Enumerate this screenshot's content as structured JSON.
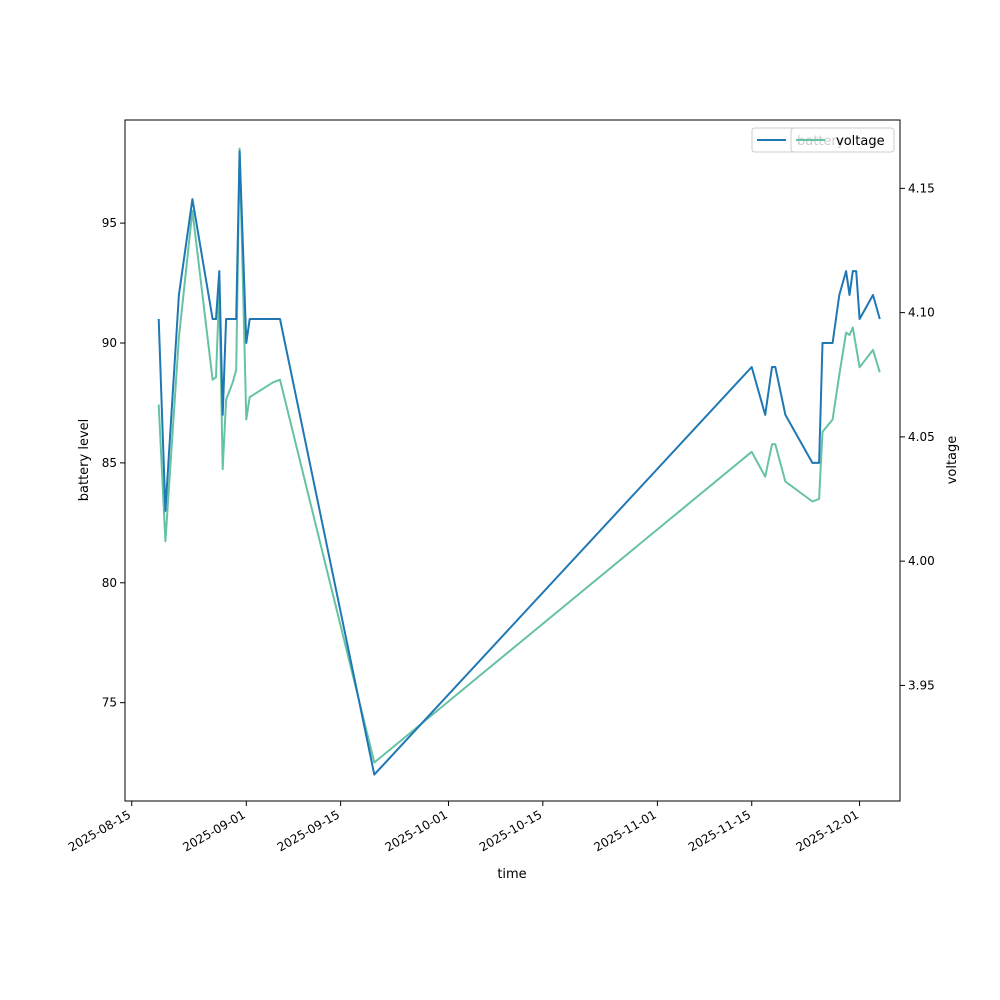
{
  "chart_data": {
    "type": "line",
    "xlabel": "time",
    "ylabel": "battery level",
    "ylabel_right": "voltage",
    "xlim": [
      "2025-08-14",
      "2025-12-07"
    ],
    "ylim": [
      70.9,
      99.3
    ],
    "ylim_right": [
      3.9035,
      4.1775
    ],
    "x_ticks": [
      "2025-08-15",
      "2025-09-01",
      "2025-09-15",
      "2025-10-01",
      "2025-10-15",
      "2025-11-01",
      "2025-11-15",
      "2025-12-01"
    ],
    "y_ticks": [
      75,
      80,
      85,
      90,
      95
    ],
    "y_ticks_right": [
      "3.95",
      "4.00",
      "4.05",
      "4.10",
      "4.15"
    ],
    "legend": {
      "placement": "top-right",
      "entries": [
        "battery",
        "voltage"
      ]
    },
    "grid": false,
    "series": [
      {
        "name": "battery",
        "axis": "left",
        "color": "#1f77b4",
        "points": [
          [
            "2025-08-19",
            91
          ],
          [
            "2025-08-20",
            83
          ],
          [
            "2025-08-22",
            92
          ],
          [
            "2025-08-24",
            96
          ],
          [
            "2025-08-27",
            91
          ],
          [
            "2025-08-27T12",
            91
          ],
          [
            "2025-08-28",
            93
          ],
          [
            "2025-08-28T12",
            87
          ],
          [
            "2025-08-29",
            91
          ],
          [
            "2025-08-30",
            91
          ],
          [
            "2025-08-30T12",
            91
          ],
          [
            "2025-08-31",
            98
          ],
          [
            "2025-09-01",
            90
          ],
          [
            "2025-09-01T12",
            91
          ],
          [
            "2025-09-03",
            91
          ],
          [
            "2025-09-05",
            91
          ],
          [
            "2025-09-06",
            91
          ],
          [
            "2025-09-20",
            72
          ],
          [
            "2025-11-15",
            89
          ],
          [
            "2025-11-17",
            87
          ],
          [
            "2025-11-18",
            89
          ],
          [
            "2025-11-18T12",
            89
          ],
          [
            "2025-11-20",
            87
          ],
          [
            "2025-11-24",
            85
          ],
          [
            "2025-11-25",
            85
          ],
          [
            "2025-11-25T12",
            90
          ],
          [
            "2025-11-27",
            90
          ],
          [
            "2025-11-28",
            92
          ],
          [
            "2025-11-29",
            93
          ],
          [
            "2025-11-29T12",
            92
          ],
          [
            "2025-11-30",
            93
          ],
          [
            "2025-11-30T12",
            93
          ],
          [
            "2025-12-01",
            91
          ],
          [
            "2025-12-03",
            92
          ],
          [
            "2025-12-04",
            91
          ]
        ]
      },
      {
        "name": "voltage",
        "axis": "right",
        "color": "#66c2a5",
        "points": [
          [
            "2025-08-19",
            4.063
          ],
          [
            "2025-08-20",
            4.008
          ],
          [
            "2025-08-22",
            4.09
          ],
          [
            "2025-08-24",
            4.141
          ],
          [
            "2025-08-27",
            4.073
          ],
          [
            "2025-08-27T12",
            4.074
          ],
          [
            "2025-08-28",
            4.11
          ],
          [
            "2025-08-28T12",
            4.037
          ],
          [
            "2025-08-29",
            4.065
          ],
          [
            "2025-08-30",
            4.072
          ],
          [
            "2025-08-30T12",
            4.077
          ],
          [
            "2025-08-31",
            4.166
          ],
          [
            "2025-09-01",
            4.057
          ],
          [
            "2025-09-01T12",
            4.066
          ],
          [
            "2025-09-05",
            4.072
          ],
          [
            "2025-09-06",
            4.073
          ],
          [
            "2025-09-20",
            3.919
          ],
          [
            "2025-11-15",
            4.044
          ],
          [
            "2025-11-17",
            4.034
          ],
          [
            "2025-11-18",
            4.047
          ],
          [
            "2025-11-18T12",
            4.047
          ],
          [
            "2025-11-20",
            4.032
          ],
          [
            "2025-11-24",
            4.024
          ],
          [
            "2025-11-25",
            4.025
          ],
          [
            "2025-11-25T12",
            4.052
          ],
          [
            "2025-11-27",
            4.057
          ],
          [
            "2025-11-28",
            4.075
          ],
          [
            "2025-11-29",
            4.092
          ],
          [
            "2025-11-29T12",
            4.091
          ],
          [
            "2025-11-30",
            4.094
          ],
          [
            "2025-12-01",
            4.078
          ],
          [
            "2025-12-03",
            4.085
          ],
          [
            "2025-12-04",
            4.076
          ]
        ]
      }
    ]
  }
}
